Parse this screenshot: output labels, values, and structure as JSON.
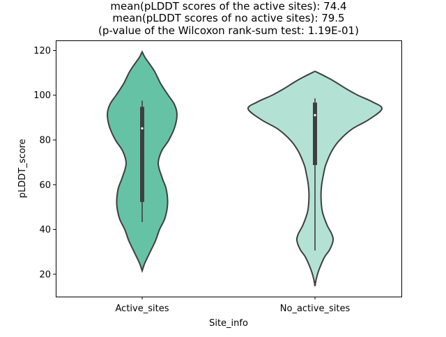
{
  "chart_data": {
    "type": "violin",
    "title_lines": [
      "mean(pLDDT scores of the active sites): 74.4",
      "mean(pLDDT scores of no active sites): 79.5",
      "(p-value of the Wilcoxon rank-sum test: 1.19E-01)"
    ],
    "xlabel": "Site_info",
    "ylabel": "pLDDT_score",
    "ylim": [
      10,
      124.5
    ],
    "yticks": [
      20,
      40,
      60,
      80,
      100,
      120
    ],
    "grid": false,
    "categories": [
      "Active_sites",
      "No_active_sites"
    ],
    "colors": {
      "Active_sites": "#66c2a5",
      "No_active_sites": "#b3e2d4",
      "outline": "#3f3f3f"
    },
    "series": [
      {
        "name": "Active_sites",
        "mean": 74.4,
        "box": {
          "whisker_low": 43.3,
          "q1": 52.3,
          "median": 85.2,
          "q3": 94.8,
          "whisker_high": 97.6
        },
        "density_profile": [
          [
            21.5,
            0
          ],
          [
            25,
            0.04
          ],
          [
            30,
            0.12
          ],
          [
            35,
            0.2
          ],
          [
            40,
            0.26
          ],
          [
            45,
            0.34
          ],
          [
            51.4,
            0.38
          ],
          [
            58,
            0.36
          ],
          [
            63,
            0.3
          ],
          [
            69.4,
            0.24
          ],
          [
            75,
            0.29
          ],
          [
            80,
            0.4
          ],
          [
            86,
            0.49
          ],
          [
            91.7,
            0.52
          ],
          [
            96,
            0.48
          ],
          [
            100,
            0.39
          ],
          [
            105,
            0.28
          ],
          [
            110.4,
            0.19
          ],
          [
            114,
            0.11
          ],
          [
            117,
            0.04
          ],
          [
            119.4,
            0
          ]
        ]
      },
      {
        "name": "No_active_sites",
        "mean": 79.5,
        "box": {
          "whisker_low": 30.6,
          "q1": 68.8,
          "median": 91.1,
          "q3": 96.7,
          "whisker_high": 98.6
        },
        "density_profile": [
          [
            14.7,
            0
          ],
          [
            18,
            0.02
          ],
          [
            22,
            0.06
          ],
          [
            27.5,
            0.14
          ],
          [
            31,
            0.22
          ],
          [
            35,
            0.27
          ],
          [
            38,
            0.25
          ],
          [
            42,
            0.18
          ],
          [
            48,
            0.11
          ],
          [
            54.5,
            0.09
          ],
          [
            60,
            0.1
          ],
          [
            65,
            0.13
          ],
          [
            68.8,
            0.16
          ],
          [
            75,
            0.25
          ],
          [
            80,
            0.37
          ],
          [
            85,
            0.56
          ],
          [
            89,
            0.8
          ],
          [
            93.9,
            1.0
          ],
          [
            97,
            0.86
          ],
          [
            100,
            0.64
          ],
          [
            103,
            0.46
          ],
          [
            106,
            0.3
          ],
          [
            108,
            0.18
          ],
          [
            110.7,
            0
          ]
        ]
      }
    ]
  }
}
